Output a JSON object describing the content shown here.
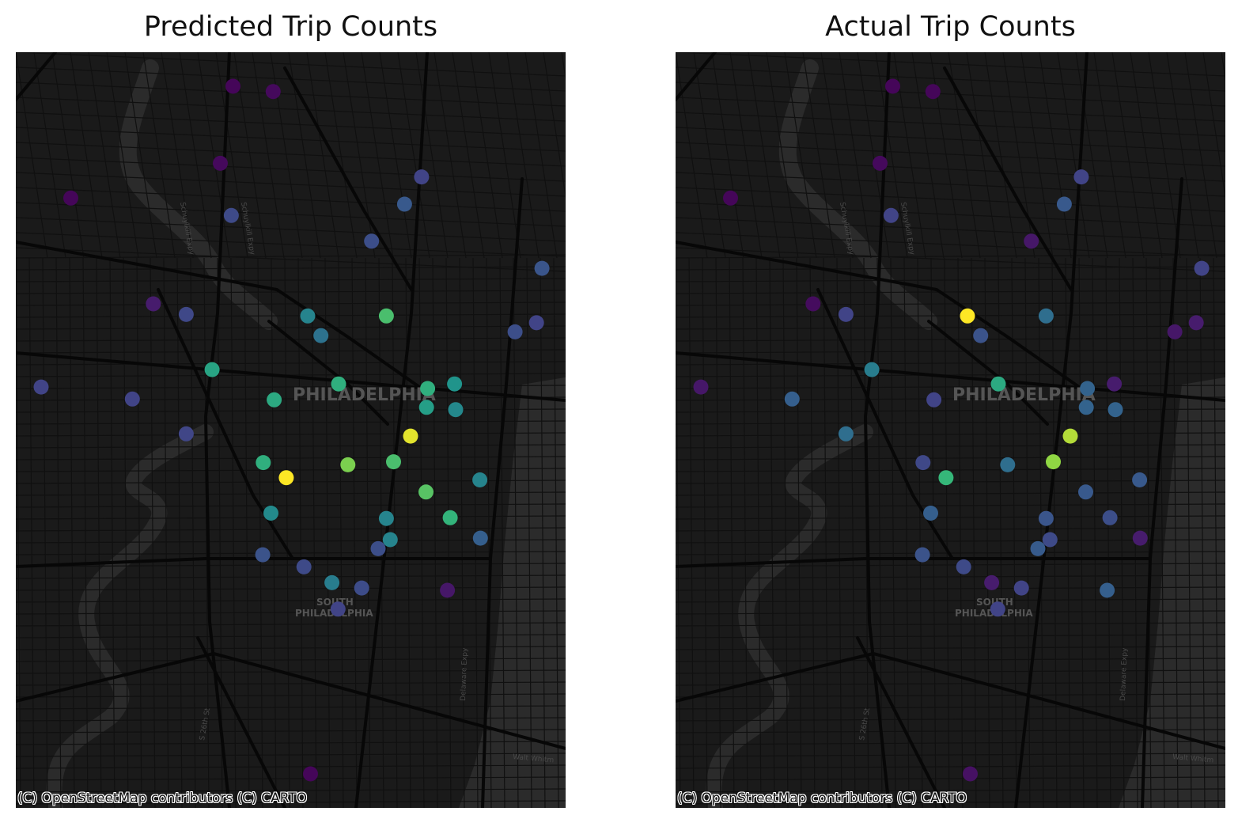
{
  "colors": {
    "map_background": "#1a1a1a",
    "water": "#2b2b2b",
    "roads_major": "#070707",
    "roads_minor": "#101010",
    "label": "#555555"
  },
  "map_labels": {
    "city": "PHILADELPHIA",
    "district_line1": "SOUTH",
    "district_line2": "PHILADELPHIA",
    "road_1": "Schuylkill Expy",
    "road_2": "Schuylkill Expy",
    "road_3": "S 26th St",
    "road_4": "Delaware Expy",
    "road_5": "Walt Whitm"
  },
  "attribution": "(C) OpenStreetMap contributors (C) CARTO",
  "colormap": "viridis",
  "panels": [
    {
      "title": "Predicted Trip Counts",
      "stations": [
        {
          "lon": 0.395,
          "lat": 0.955,
          "v": 0.02
        },
        {
          "lon": 0.468,
          "lat": 0.948,
          "v": 0.03
        },
        {
          "lon": 0.372,
          "lat": 0.853,
          "v": 0.03
        },
        {
          "lon": 0.1,
          "lat": 0.807,
          "v": 0.02
        },
        {
          "lon": 0.392,
          "lat": 0.784,
          "v": 0.28
        },
        {
          "lon": 0.738,
          "lat": 0.835,
          "v": 0.25
        },
        {
          "lon": 0.707,
          "lat": 0.799,
          "v": 0.35
        },
        {
          "lon": 0.647,
          "lat": 0.75,
          "v": 0.3
        },
        {
          "lon": 0.957,
          "lat": 0.714,
          "v": 0.33
        },
        {
          "lon": 0.25,
          "lat": 0.667,
          "v": 0.1
        },
        {
          "lon": 0.31,
          "lat": 0.653,
          "v": 0.27
        },
        {
          "lon": 0.531,
          "lat": 0.651,
          "v": 0.55
        },
        {
          "lon": 0.674,
          "lat": 0.651,
          "v": 0.78
        },
        {
          "lon": 0.555,
          "lat": 0.625,
          "v": 0.47
        },
        {
          "lon": 0.908,
          "lat": 0.63,
          "v": 0.3
        },
        {
          "lon": 0.947,
          "lat": 0.642,
          "v": 0.25
        },
        {
          "lon": 0.357,
          "lat": 0.58,
          "v": 0.68
        },
        {
          "lon": 0.046,
          "lat": 0.557,
          "v": 0.25
        },
        {
          "lon": 0.212,
          "lat": 0.541,
          "v": 0.25
        },
        {
          "lon": 0.587,
          "lat": 0.561,
          "v": 0.72
        },
        {
          "lon": 0.47,
          "lat": 0.54,
          "v": 0.7
        },
        {
          "lon": 0.749,
          "lat": 0.555,
          "v": 0.72
        },
        {
          "lon": 0.798,
          "lat": 0.561,
          "v": 0.62
        },
        {
          "lon": 0.747,
          "lat": 0.53,
          "v": 0.66
        },
        {
          "lon": 0.8,
          "lat": 0.527,
          "v": 0.57
        },
        {
          "lon": 0.31,
          "lat": 0.495,
          "v": 0.26
        },
        {
          "lon": 0.718,
          "lat": 0.492,
          "v": 0.97
        },
        {
          "lon": 0.687,
          "lat": 0.458,
          "v": 0.78
        },
        {
          "lon": 0.45,
          "lat": 0.457,
          "v": 0.72
        },
        {
          "lon": 0.604,
          "lat": 0.454,
          "v": 0.85
        },
        {
          "lon": 0.492,
          "lat": 0.437,
          "v": 1.0
        },
        {
          "lon": 0.844,
          "lat": 0.434,
          "v": 0.55
        },
        {
          "lon": 0.746,
          "lat": 0.418,
          "v": 0.8
        },
        {
          "lon": 0.464,
          "lat": 0.39,
          "v": 0.58
        },
        {
          "lon": 0.674,
          "lat": 0.383,
          "v": 0.55
        },
        {
          "lon": 0.79,
          "lat": 0.384,
          "v": 0.74
        },
        {
          "lon": 0.681,
          "lat": 0.355,
          "v": 0.55
        },
        {
          "lon": 0.659,
          "lat": 0.343,
          "v": 0.3
        },
        {
          "lon": 0.845,
          "lat": 0.357,
          "v": 0.38
        },
        {
          "lon": 0.449,
          "lat": 0.335,
          "v": 0.32
        },
        {
          "lon": 0.524,
          "lat": 0.319,
          "v": 0.28
        },
        {
          "lon": 0.575,
          "lat": 0.298,
          "v": 0.52
        },
        {
          "lon": 0.629,
          "lat": 0.291,
          "v": 0.29
        },
        {
          "lon": 0.785,
          "lat": 0.288,
          "v": 0.08
        },
        {
          "lon": 0.586,
          "lat": 0.263,
          "v": 0.25
        },
        {
          "lon": 0.536,
          "lat": 0.045,
          "v": 0.02
        }
      ]
    },
    {
      "title": "Actual Trip Counts",
      "stations": [
        {
          "lon": 0.395,
          "lat": 0.955,
          "v": 0.02
        },
        {
          "lon": 0.468,
          "lat": 0.948,
          "v": 0.02
        },
        {
          "lon": 0.372,
          "lat": 0.853,
          "v": 0.03
        },
        {
          "lon": 0.1,
          "lat": 0.807,
          "v": 0.02
        },
        {
          "lon": 0.392,
          "lat": 0.784,
          "v": 0.25
        },
        {
          "lon": 0.738,
          "lat": 0.835,
          "v": 0.25
        },
        {
          "lon": 0.707,
          "lat": 0.799,
          "v": 0.35
        },
        {
          "lon": 0.647,
          "lat": 0.75,
          "v": 0.08
        },
        {
          "lon": 0.957,
          "lat": 0.714,
          "v": 0.25
        },
        {
          "lon": 0.25,
          "lat": 0.667,
          "v": 0.04
        },
        {
          "lon": 0.31,
          "lat": 0.653,
          "v": 0.25
        },
        {
          "lon": 0.531,
          "lat": 0.651,
          "v": 1.0
        },
        {
          "lon": 0.674,
          "lat": 0.651,
          "v": 0.45
        },
        {
          "lon": 0.555,
          "lat": 0.625,
          "v": 0.32
        },
        {
          "lon": 0.908,
          "lat": 0.63,
          "v": 0.08
        },
        {
          "lon": 0.947,
          "lat": 0.642,
          "v": 0.1
        },
        {
          "lon": 0.357,
          "lat": 0.58,
          "v": 0.52
        },
        {
          "lon": 0.046,
          "lat": 0.557,
          "v": 0.08
        },
        {
          "lon": 0.212,
          "lat": 0.541,
          "v": 0.38
        },
        {
          "lon": 0.587,
          "lat": 0.561,
          "v": 0.7
        },
        {
          "lon": 0.47,
          "lat": 0.54,
          "v": 0.25
        },
        {
          "lon": 0.749,
          "lat": 0.555,
          "v": 0.4
        },
        {
          "lon": 0.798,
          "lat": 0.561,
          "v": 0.1
        },
        {
          "lon": 0.747,
          "lat": 0.53,
          "v": 0.4
        },
        {
          "lon": 0.8,
          "lat": 0.527,
          "v": 0.4
        },
        {
          "lon": 0.31,
          "lat": 0.495,
          "v": 0.45
        },
        {
          "lon": 0.718,
          "lat": 0.492,
          "v": 0.92
        },
        {
          "lon": 0.687,
          "lat": 0.458,
          "v": 0.88
        },
        {
          "lon": 0.45,
          "lat": 0.457,
          "v": 0.27
        },
        {
          "lon": 0.604,
          "lat": 0.454,
          "v": 0.45
        },
        {
          "lon": 0.492,
          "lat": 0.437,
          "v": 0.75
        },
        {
          "lon": 0.844,
          "lat": 0.434,
          "v": 0.35
        },
        {
          "lon": 0.746,
          "lat": 0.418,
          "v": 0.35
        },
        {
          "lon": 0.464,
          "lat": 0.39,
          "v": 0.38
        },
        {
          "lon": 0.674,
          "lat": 0.383,
          "v": 0.33
        },
        {
          "lon": 0.79,
          "lat": 0.384,
          "v": 0.3
        },
        {
          "lon": 0.681,
          "lat": 0.355,
          "v": 0.28
        },
        {
          "lon": 0.659,
          "lat": 0.343,
          "v": 0.36
        },
        {
          "lon": 0.845,
          "lat": 0.357,
          "v": 0.1
        },
        {
          "lon": 0.449,
          "lat": 0.335,
          "v": 0.32
        },
        {
          "lon": 0.524,
          "lat": 0.319,
          "v": 0.28
        },
        {
          "lon": 0.575,
          "lat": 0.298,
          "v": 0.1
        },
        {
          "lon": 0.629,
          "lat": 0.291,
          "v": 0.25
        },
        {
          "lon": 0.785,
          "lat": 0.288,
          "v": 0.38
        },
        {
          "lon": 0.586,
          "lat": 0.263,
          "v": 0.25
        },
        {
          "lon": 0.536,
          "lat": 0.045,
          "v": 0.06
        }
      ]
    }
  ]
}
